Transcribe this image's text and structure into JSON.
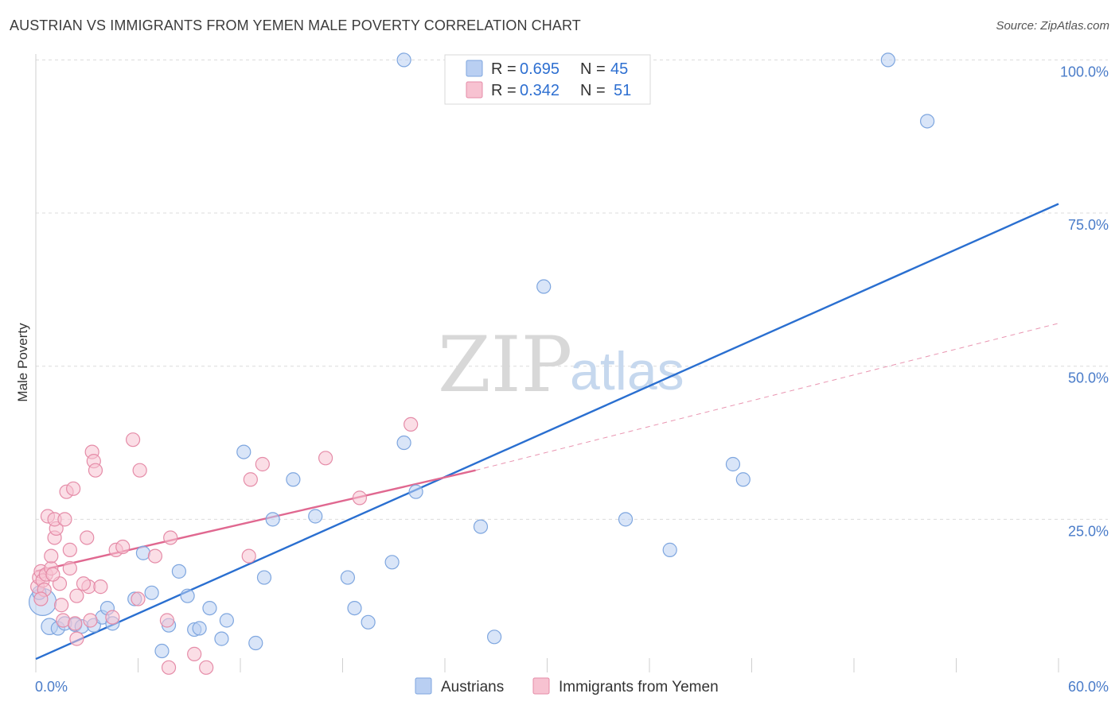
{
  "header": {
    "title": "AUSTRIAN VS IMMIGRANTS FROM YEMEN MALE POVERTY CORRELATION CHART",
    "source": "Source: ZipAtlas.com"
  },
  "watermark": {
    "zip": "ZIP",
    "atlas": "atlas"
  },
  "colors": {
    "blue_fill": "#b9cff2",
    "blue_stroke": "#7ea6df",
    "blue_line": "#2a6fd0",
    "pink_fill": "#f7c2d1",
    "pink_stroke": "#e58ca8",
    "pink_line": "#e06890",
    "grid": "#dcdcdc",
    "tick_text": "#4a7cc9"
  },
  "legend": {
    "rows": [
      {
        "r_label": "R = ",
        "r_value": "0.695",
        "n_label": "N = ",
        "n_value": "45",
        "series": "blue"
      },
      {
        "r_label": "R = ",
        "r_value": "0.342",
        "n_label": "N = ",
        "n_value": "51",
        "series": "pink"
      }
    ]
  },
  "chart_data": {
    "type": "scatter",
    "title": "AUSTRIAN VS IMMIGRANTS FROM YEMEN MALE POVERTY CORRELATION CHART",
    "xlabel": "",
    "ylabel": "Male Poverty",
    "xlim": [
      0,
      60
    ],
    "ylim": [
      0,
      102
    ],
    "x_tick_labels": [
      "0.0%",
      "60.0%"
    ],
    "y_ticks": [
      25,
      50,
      75,
      100
    ],
    "y_tick_labels": [
      "25.0%",
      "50.0%",
      "75.0%",
      "100.0%"
    ],
    "grid": true,
    "legend_position": "top-center",
    "series": [
      {
        "name": "Austrians",
        "color": "blue",
        "R": 0.695,
        "N": 45,
        "trend": {
          "x": [
            0,
            60
          ],
          "y": [
            2.2,
            76.5
          ],
          "style": "solid"
        },
        "points": [
          [
            0.4,
            11.5,
            2.0
          ],
          [
            0.8,
            7.5,
            1.2
          ],
          [
            1.3,
            7.2,
            1.0
          ],
          [
            1.7,
            8.0,
            1.0
          ],
          [
            2.3,
            7.8,
            1.0
          ],
          [
            2.7,
            7.5,
            1.0
          ],
          [
            3.4,
            7.7,
            1.0
          ],
          [
            3.9,
            9.0,
            1.0
          ],
          [
            4.2,
            10.5,
            1.0
          ],
          [
            4.5,
            8.0,
            1.0
          ],
          [
            5.8,
            12.0,
            1.0
          ],
          [
            6.3,
            19.5,
            1.0
          ],
          [
            6.8,
            13.0,
            1.0
          ],
          [
            7.4,
            3.5,
            1.0
          ],
          [
            7.8,
            7.7,
            1.0
          ],
          [
            8.4,
            16.5,
            1.0
          ],
          [
            8.9,
            12.5,
            1.0
          ],
          [
            9.3,
            7.0,
            1.0
          ],
          [
            9.6,
            7.2,
            1.0
          ],
          [
            10.2,
            10.5,
            1.0
          ],
          [
            10.9,
            5.5,
            1.0
          ],
          [
            11.2,
            8.5,
            1.0
          ],
          [
            12.2,
            36.0,
            1.0
          ],
          [
            12.9,
            4.8,
            1.0
          ],
          [
            13.4,
            15.5,
            1.0
          ],
          [
            13.9,
            25.0,
            1.0
          ],
          [
            15.1,
            31.5,
            1.0
          ],
          [
            16.4,
            25.5,
            1.0
          ],
          [
            18.3,
            15.5,
            1.0
          ],
          [
            18.7,
            10.5,
            1.0
          ],
          [
            19.5,
            8.2,
            1.0
          ],
          [
            20.9,
            18.0,
            1.0
          ],
          [
            21.6,
            37.5,
            1.0
          ],
          [
            22.3,
            29.5,
            1.0
          ],
          [
            21.6,
            100.0,
            1.0
          ],
          [
            26.1,
            23.8,
            1.0
          ],
          [
            26.9,
            5.8,
            1.0
          ],
          [
            29.8,
            63.0,
            1.0
          ],
          [
            34.6,
            25.0,
            1.0
          ],
          [
            37.2,
            20.0,
            1.0
          ],
          [
            40.9,
            34.0,
            1.0
          ],
          [
            41.5,
            31.5,
            1.0
          ],
          [
            50.0,
            100.0,
            1.0
          ],
          [
            52.3,
            90.0,
            1.0
          ],
          [
            0.2,
            13.0,
            1.0
          ]
        ]
      },
      {
        "name": "Immigrants from Yemen",
        "color": "pink",
        "R": 0.342,
        "N": 51,
        "trend": {
          "x": [
            0,
            25.8
          ],
          "y": [
            16.5,
            33.0
          ],
          "style": "solid"
        },
        "trend_extension": {
          "x": [
            25.8,
            60
          ],
          "y": [
            33.0,
            57.0
          ],
          "style": "dashed"
        },
        "points": [
          [
            0.1,
            14.0,
            1.0
          ],
          [
            0.2,
            15.5,
            1.0
          ],
          [
            0.3,
            16.5,
            1.0
          ],
          [
            0.4,
            15.0,
            1.0
          ],
          [
            0.5,
            13.5,
            1.0
          ],
          [
            0.6,
            16.0,
            1.0
          ],
          [
            0.7,
            25.5,
            1.0
          ],
          [
            0.9,
            17.0,
            1.0
          ],
          [
            0.9,
            19.0,
            1.0
          ],
          [
            1.1,
            22.0,
            1.0
          ],
          [
            1.2,
            23.5,
            1.0
          ],
          [
            1.1,
            25.0,
            1.0
          ],
          [
            1.4,
            14.5,
            1.0
          ],
          [
            1.5,
            11.0,
            1.0
          ],
          [
            1.6,
            8.5,
            1.0
          ],
          [
            1.7,
            25.0,
            1.0
          ],
          [
            1.8,
            29.5,
            1.0
          ],
          [
            2.0,
            17.0,
            1.0
          ],
          [
            2.0,
            20.0,
            1.0
          ],
          [
            2.2,
            30.0,
            1.0
          ],
          [
            2.3,
            8.0,
            1.0
          ],
          [
            2.4,
            12.5,
            1.0
          ],
          [
            2.4,
            5.5,
            1.0
          ],
          [
            3.0,
            22.0,
            1.0
          ],
          [
            3.1,
            14.0,
            1.0
          ],
          [
            3.2,
            8.5,
            1.0
          ],
          [
            3.3,
            36.0,
            1.0
          ],
          [
            3.4,
            34.5,
            1.0
          ],
          [
            3.5,
            33.0,
            1.0
          ],
          [
            3.8,
            14.0,
            1.0
          ],
          [
            4.5,
            9.0,
            1.0
          ],
          [
            4.7,
            20.0,
            1.0
          ],
          [
            5.1,
            20.5,
            1.0
          ],
          [
            5.7,
            38.0,
            1.0
          ],
          [
            6.0,
            12.0,
            1.0
          ],
          [
            6.1,
            33.0,
            1.0
          ],
          [
            7.0,
            19.0,
            1.0
          ],
          [
            7.7,
            8.5,
            1.0
          ],
          [
            7.8,
            0.8,
            1.0
          ],
          [
            7.9,
            22.0,
            1.0
          ],
          [
            9.3,
            3.0,
            1.0
          ],
          [
            10.0,
            0.8,
            1.0
          ],
          [
            12.5,
            19.0,
            1.0
          ],
          [
            12.6,
            31.5,
            1.0
          ],
          [
            13.3,
            34.0,
            1.0
          ],
          [
            17.0,
            35.0,
            1.0
          ],
          [
            19.0,
            28.5,
            1.0
          ],
          [
            22.0,
            40.5,
            1.0
          ],
          [
            0.3,
            12.0,
            1.0
          ],
          [
            1.0,
            16.0,
            1.0
          ],
          [
            2.8,
            14.5,
            1.0
          ]
        ]
      }
    ]
  },
  "bottom_legend": {
    "items": [
      {
        "label": "Austrians",
        "series": "blue"
      },
      {
        "label": "Immigrants from Yemen",
        "series": "pink"
      }
    ]
  }
}
